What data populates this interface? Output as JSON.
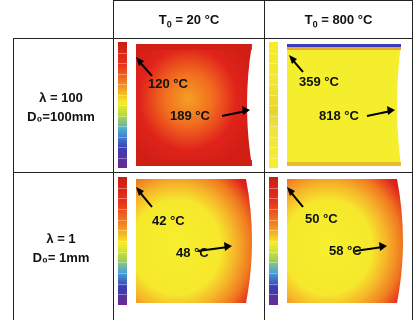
{
  "header": {
    "col1_prefix": "T",
    "col1_sub": "0",
    "col1_suffix": " = 20 °C",
    "col2_prefix": "T",
    "col2_sub": "0",
    "col2_suffix": " = 800 °C"
  },
  "rows": [
    {
      "line1": "λ = 100",
      "line2": "D₀=100mm"
    },
    {
      "line1": "λ = 1",
      "line2": "D₀= 1mm"
    }
  ],
  "cells": {
    "r1c1": {
      "top_label": "120 °C",
      "mid_label": "189 °C"
    },
    "r1c2": {
      "top_label": "359 °C",
      "mid_label": "818 °C"
    },
    "r2c1": {
      "top_label": "42 °C",
      "mid_label": "48 °C"
    },
    "r2c2": {
      "top_label": "50 °C",
      "mid_label": "58 °C"
    }
  },
  "colors": {
    "red": "#e0231b",
    "orange": "#f07a1f",
    "yellow": "#f4ee2c",
    "blue": "#2f3fb0",
    "purple": "#6a2a8a"
  }
}
